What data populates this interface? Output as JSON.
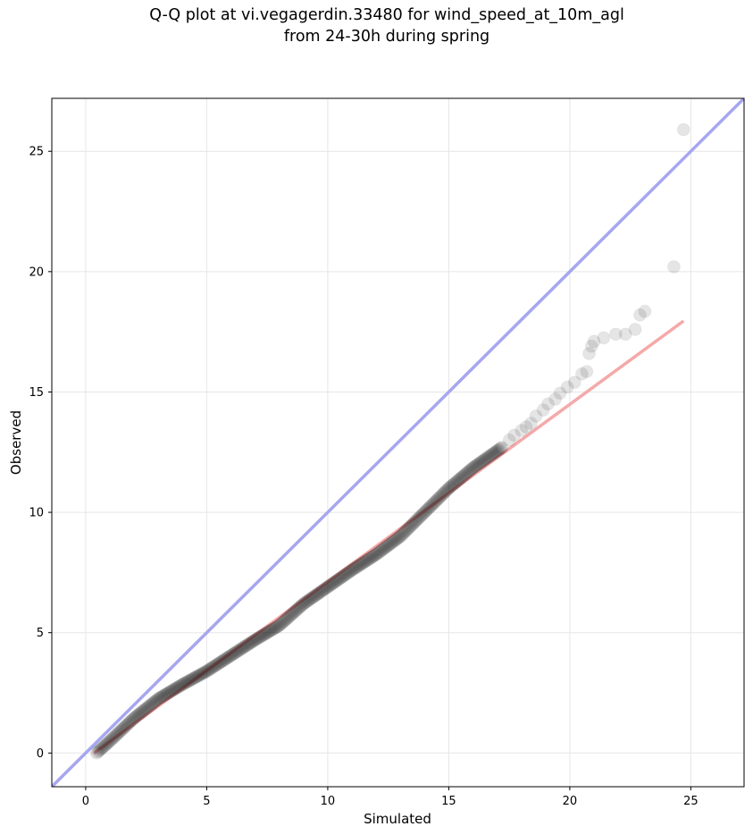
{
  "chart_data": {
    "type": "scatter",
    "title_lines": [
      "Q-Q plot at vi.vegagerdin.33480 for wind_speed_at_10m_agl",
      "from 24-30h during spring"
    ],
    "xlabel": "Simulated",
    "ylabel": "Observed",
    "xlim": [
      -1.4,
      27.2
    ],
    "ylim": [
      -1.4,
      27.2
    ],
    "xticks": [
      0,
      5,
      10,
      15,
      20,
      25
    ],
    "yticks": [
      0,
      5,
      10,
      15,
      20,
      25
    ],
    "grid": true,
    "identity_line": {
      "color": "#a6a6f0",
      "from": [
        -1.4,
        -1.4
      ],
      "to": [
        27.2,
        27.2
      ]
    },
    "fit_line": {
      "color": "#f5a9a9",
      "from": [
        0.35,
        0.0
      ],
      "to": [
        24.7,
        17.95
      ]
    },
    "point_color": "#000000",
    "bulk_points": {
      "x_start": 0.45,
      "x_end": 17.2,
      "count": 380,
      "path": [
        [
          0.45,
          0.0
        ],
        [
          1.0,
          0.5
        ],
        [
          2.0,
          1.45
        ],
        [
          3.0,
          2.25
        ],
        [
          4.0,
          2.85
        ],
        [
          5.0,
          3.4
        ],
        [
          6.0,
          4.05
        ],
        [
          7.0,
          4.7
        ],
        [
          8.0,
          5.3
        ],
        [
          9.0,
          6.2
        ],
        [
          10.0,
          6.9
        ],
        [
          11.0,
          7.6
        ],
        [
          12.0,
          8.25
        ],
        [
          13.0,
          9.0
        ],
        [
          14.0,
          10.0
        ],
        [
          15.0,
          11.0
        ],
        [
          16.0,
          11.85
        ],
        [
          17.2,
          12.7
        ]
      ]
    },
    "tail_points": [
      [
        17.5,
        13.0
      ],
      [
        17.7,
        13.2
      ],
      [
        18.0,
        13.4
      ],
      [
        18.2,
        13.55
      ],
      [
        18.4,
        13.7
      ],
      [
        18.6,
        14.0
      ],
      [
        18.9,
        14.25
      ],
      [
        19.1,
        14.5
      ],
      [
        19.4,
        14.7
      ],
      [
        19.6,
        14.95
      ],
      [
        19.9,
        15.2
      ],
      [
        20.2,
        15.4
      ],
      [
        20.5,
        15.75
      ],
      [
        20.7,
        15.85
      ],
      [
        20.8,
        16.6
      ],
      [
        20.9,
        16.9
      ],
      [
        21.0,
        17.1
      ],
      [
        21.4,
        17.25
      ],
      [
        21.9,
        17.4
      ],
      [
        22.3,
        17.4
      ],
      [
        22.7,
        17.6
      ],
      [
        22.9,
        18.2
      ],
      [
        23.1,
        18.35
      ],
      [
        24.3,
        20.2
      ],
      [
        24.7,
        25.9
      ]
    ]
  }
}
